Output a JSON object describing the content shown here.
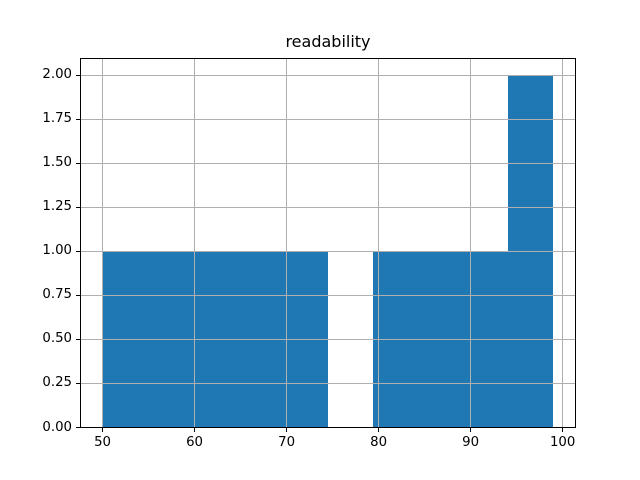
{
  "colors": {
    "bar": "#1f77b4",
    "grid": "#b0b0b0",
    "spine": "#000000",
    "background": "#ffffff",
    "text": "#000000"
  },
  "chart_data": {
    "type": "bar",
    "subtype": "histogram",
    "title": "readability",
    "xlabel": "",
    "ylabel": "",
    "bin_edges": [
      50.0,
      54.9,
      59.8,
      64.7,
      69.6,
      74.5,
      79.4,
      84.3,
      89.2,
      94.1,
      99.0
    ],
    "counts": [
      1,
      1,
      1,
      1,
      1,
      0,
      1,
      1,
      1,
      2
    ],
    "xlim": [
      47.55,
      101.45
    ],
    "ylim": [
      0,
      2.1
    ],
    "xticks": [
      50,
      60,
      70,
      80,
      90,
      100
    ],
    "xtick_labels": [
      "50",
      "60",
      "70",
      "80",
      "90",
      "100"
    ],
    "yticks": [
      0,
      0.25,
      0.5,
      0.75,
      1.0,
      1.25,
      1.5,
      1.75,
      2.0
    ],
    "ytick_labels": [
      "0.00",
      "0.25",
      "0.50",
      "0.75",
      "1.00",
      "1.25",
      "1.50",
      "1.75",
      "2.00"
    ],
    "grid": true,
    "legend": false
  }
}
